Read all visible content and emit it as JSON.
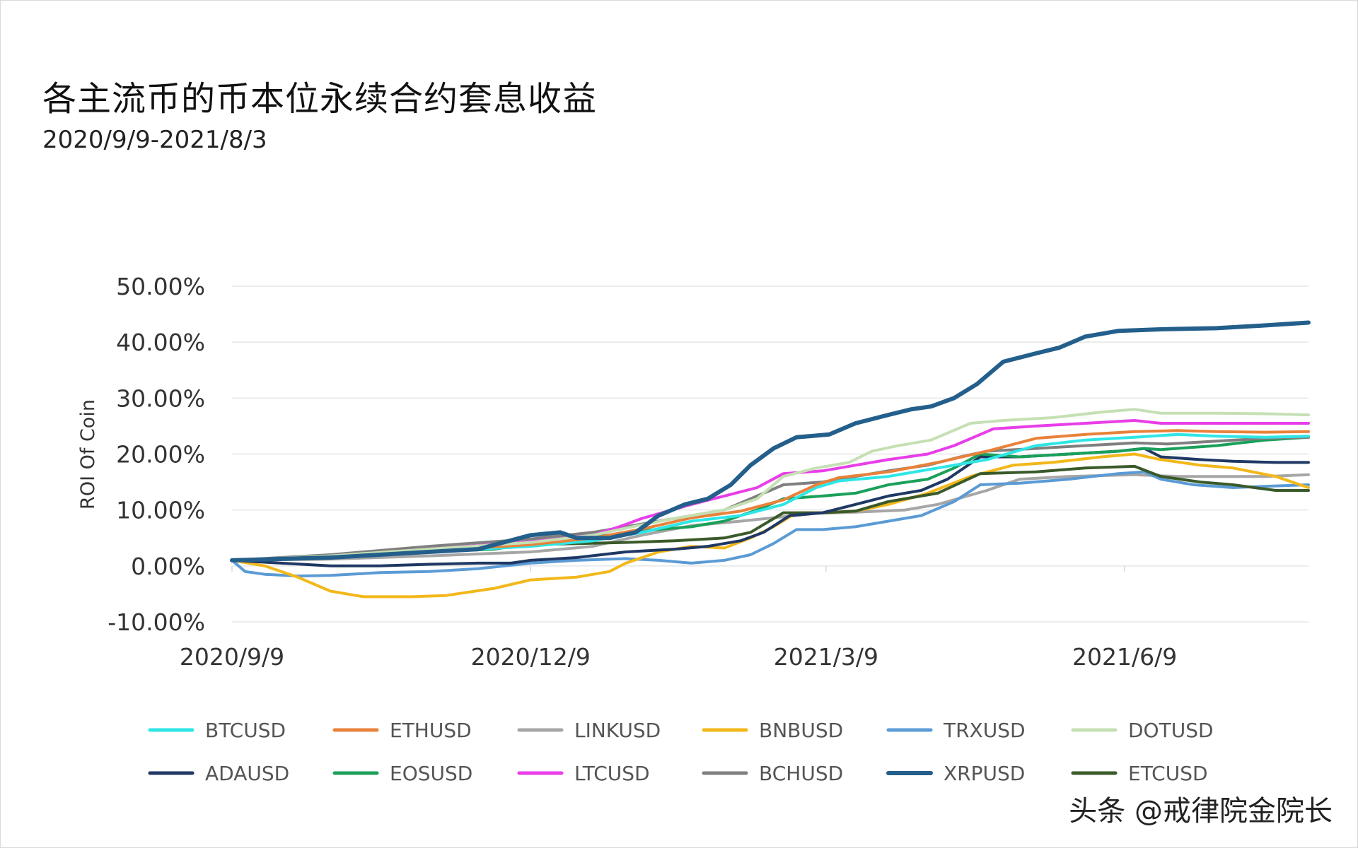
{
  "title": "各主流币的币本位永续合约套息收益",
  "subtitle": "2020/9/9-2021/8/3",
  "watermark": "头条 @戒律院金院长",
  "chart_data": {
    "type": "line",
    "ylabel": "ROI Of Coin",
    "ylim": [
      -10,
      50
    ],
    "yticks": [
      50,
      40,
      30,
      20,
      10,
      0,
      -10
    ],
    "ytick_labels": [
      "50.00%",
      "40.00%",
      "30.00%",
      "20.00%",
      "10.00%",
      "0.00%",
      "-10.00%"
    ],
    "xlim": [
      0,
      328
    ],
    "xticks": [
      0,
      91,
      181,
      272
    ],
    "xtick_labels": [
      "2020/9/9",
      "2020/12/9",
      "2021/3/9",
      "2021/6/9"
    ],
    "grid": true,
    "legend_position": "bottom",
    "series": [
      {
        "name": "BTCUSD",
        "color": "#2ee6e6",
        "points": [
          [
            0,
            1
          ],
          [
            30,
            1.5
          ],
          [
            60,
            2.5
          ],
          [
            91,
            3.5
          ],
          [
            110,
            4.5
          ],
          [
            125,
            6
          ],
          [
            140,
            8
          ],
          [
            155,
            9
          ],
          [
            168,
            11
          ],
          [
            178,
            14
          ],
          [
            185,
            15.2
          ],
          [
            200,
            16
          ],
          [
            215,
            17.5
          ],
          [
            230,
            19
          ],
          [
            245,
            21.5
          ],
          [
            260,
            22.5
          ],
          [
            275,
            23
          ],
          [
            288,
            23.5
          ],
          [
            300,
            23.2
          ],
          [
            315,
            23
          ],
          [
            328,
            23.2
          ]
        ]
      },
      {
        "name": "ETHUSD",
        "color": "#e8823a",
        "points": [
          [
            0,
            1
          ],
          [
            30,
            1.6
          ],
          [
            60,
            2.7
          ],
          [
            91,
            3.8
          ],
          [
            110,
            5
          ],
          [
            125,
            6.6
          ],
          [
            140,
            8.6
          ],
          [
            155,
            9.8
          ],
          [
            168,
            11.8
          ],
          [
            178,
            14.5
          ],
          [
            185,
            15.8
          ],
          [
            200,
            16.8
          ],
          [
            215,
            18.5
          ],
          [
            230,
            20.5
          ],
          [
            245,
            22.8
          ],
          [
            260,
            23.5
          ],
          [
            275,
            24
          ],
          [
            288,
            24.2
          ],
          [
            300,
            24
          ],
          [
            315,
            23.9
          ],
          [
            328,
            24
          ]
        ]
      },
      {
        "name": "LINKUSD",
        "color": "#a6a6a6",
        "points": [
          [
            0,
            1
          ],
          [
            30,
            1.2
          ],
          [
            60,
            1.8
          ],
          [
            91,
            2.5
          ],
          [
            110,
            3.5
          ],
          [
            125,
            5.5
          ],
          [
            140,
            7.2
          ],
          [
            155,
            8
          ],
          [
            168,
            8.8
          ],
          [
            178,
            9.4
          ],
          [
            190,
            9.6
          ],
          [
            205,
            10
          ],
          [
            215,
            11
          ],
          [
            230,
            13.5
          ],
          [
            240,
            15.5
          ],
          [
            255,
            16
          ],
          [
            275,
            16.3
          ],
          [
            288,
            16
          ],
          [
            300,
            16
          ],
          [
            315,
            16
          ],
          [
            328,
            16.3
          ]
        ]
      },
      {
        "name": "BNBUSD",
        "color": "#f2b81a",
        "points": [
          [
            0,
            1
          ],
          [
            10,
            0
          ],
          [
            20,
            -2
          ],
          [
            30,
            -4.5
          ],
          [
            40,
            -5.5
          ],
          [
            55,
            -5.5
          ],
          [
            65,
            -5.3
          ],
          [
            80,
            -4
          ],
          [
            91,
            -2.5
          ],
          [
            105,
            -2
          ],
          [
            115,
            -1
          ],
          [
            120,
            0.5
          ],
          [
            130,
            2.5
          ],
          [
            140,
            3.5
          ],
          [
            150,
            3.2
          ],
          [
            158,
            5
          ],
          [
            165,
            7
          ],
          [
            172,
            9.5
          ],
          [
            180,
            9.5
          ],
          [
            190,
            9.8
          ],
          [
            200,
            11
          ],
          [
            212,
            13
          ],
          [
            225,
            16
          ],
          [
            238,
            18
          ],
          [
            250,
            18.5
          ],
          [
            265,
            19.5
          ],
          [
            275,
            20
          ],
          [
            283,
            19
          ],
          [
            295,
            18
          ],
          [
            305,
            17.5
          ],
          [
            318,
            16
          ],
          [
            328,
            14
          ]
        ]
      },
      {
        "name": "TRXUSD",
        "color": "#5b9bd5",
        "points": [
          [
            0,
            1
          ],
          [
            4,
            -1
          ],
          [
            10,
            -1.5
          ],
          [
            20,
            -1.8
          ],
          [
            30,
            -1.7
          ],
          [
            45,
            -1.2
          ],
          [
            60,
            -1
          ],
          [
            75,
            -0.5
          ],
          [
            91,
            0.5
          ],
          [
            105,
            1
          ],
          [
            120,
            1.3
          ],
          [
            130,
            1
          ],
          [
            140,
            0.5
          ],
          [
            150,
            1
          ],
          [
            158,
            2
          ],
          [
            165,
            4
          ],
          [
            172,
            6.5
          ],
          [
            180,
            6.5
          ],
          [
            190,
            7
          ],
          [
            200,
            8
          ],
          [
            210,
            9
          ],
          [
            220,
            11.5
          ],
          [
            228,
            14.5
          ],
          [
            240,
            14.8
          ],
          [
            255,
            15.5
          ],
          [
            270,
            16.5
          ],
          [
            278,
            16.8
          ],
          [
            283,
            15.5
          ],
          [
            293,
            14.5
          ],
          [
            305,
            14
          ],
          [
            318,
            14.3
          ],
          [
            328,
            14.5
          ]
        ]
      },
      {
        "name": "DOTUSD",
        "color": "#c5e0b4",
        "points": [
          [
            0,
            1
          ],
          [
            30,
            1.8
          ],
          [
            60,
            3
          ],
          [
            91,
            4.2
          ],
          [
            110,
            5.5
          ],
          [
            122,
            7
          ],
          [
            135,
            8.5
          ],
          [
            150,
            10
          ],
          [
            160,
            12
          ],
          [
            168,
            16
          ],
          [
            178,
            17.5
          ],
          [
            188,
            18.5
          ],
          [
            195,
            20.5
          ],
          [
            203,
            21.5
          ],
          [
            213,
            22.5
          ],
          [
            225,
            25.5
          ],
          [
            235,
            26
          ],
          [
            250,
            26.5
          ],
          [
            265,
            27.5
          ],
          [
            275,
            28
          ],
          [
            283,
            27.3
          ],
          [
            300,
            27.3
          ],
          [
            315,
            27.2
          ],
          [
            328,
            27
          ]
        ]
      },
      {
        "name": "ADAUSD",
        "color": "#1f3864",
        "points": [
          [
            0,
            1
          ],
          [
            15,
            0.5
          ],
          [
            30,
            0
          ],
          [
            45,
            0
          ],
          [
            60,
            0.3
          ],
          [
            75,
            0.5
          ],
          [
            85,
            0.5
          ],
          [
            91,
            1
          ],
          [
            105,
            1.5
          ],
          [
            120,
            2.5
          ],
          [
            135,
            3
          ],
          [
            145,
            3.5
          ],
          [
            155,
            4.5
          ],
          [
            162,
            6
          ],
          [
            170,
            9
          ],
          [
            180,
            9.5
          ],
          [
            190,
            11
          ],
          [
            200,
            12.5
          ],
          [
            210,
            13.5
          ],
          [
            218,
            15.5
          ],
          [
            228,
            19.5
          ],
          [
            240,
            19.5
          ],
          [
            255,
            20
          ],
          [
            270,
            20.5
          ],
          [
            278,
            21
          ],
          [
            283,
            19.5
          ],
          [
            295,
            19
          ],
          [
            305,
            18.7
          ],
          [
            318,
            18.5
          ],
          [
            328,
            18.5
          ]
        ]
      },
      {
        "name": "EOSUSD",
        "color": "#1aa05a",
        "points": [
          [
            0,
            1
          ],
          [
            30,
            1.5
          ],
          [
            60,
            2.5
          ],
          [
            80,
            3
          ],
          [
            91,
            4
          ],
          [
            105,
            5
          ],
          [
            115,
            5.5
          ],
          [
            125,
            6.3
          ],
          [
            140,
            7
          ],
          [
            150,
            8
          ],
          [
            160,
            10
          ],
          [
            168,
            12
          ],
          [
            180,
            12.5
          ],
          [
            190,
            13
          ],
          [
            200,
            14.5
          ],
          [
            212,
            15.5
          ],
          [
            220,
            17.5
          ],
          [
            228,
            20
          ],
          [
            240,
            19.5
          ],
          [
            255,
            20
          ],
          [
            270,
            20.5
          ],
          [
            278,
            21
          ],
          [
            283,
            20.8
          ],
          [
            300,
            21.5
          ],
          [
            315,
            22.5
          ],
          [
            328,
            23
          ]
        ]
      },
      {
        "name": "LTCUSD",
        "color": "#e83ee8",
        "points": [
          [
            0,
            1
          ],
          [
            30,
            1.7
          ],
          [
            60,
            3
          ],
          [
            91,
            4.3
          ],
          [
            110,
            5.5
          ],
          [
            118,
            7
          ],
          [
            125,
            8.5
          ],
          [
            140,
            11
          ],
          [
            150,
            12.5
          ],
          [
            160,
            14
          ],
          [
            168,
            16.5
          ],
          [
            180,
            17
          ],
          [
            190,
            18
          ],
          [
            200,
            19
          ],
          [
            212,
            20
          ],
          [
            220,
            21.5
          ],
          [
            232,
            24.5
          ],
          [
            245,
            25
          ],
          [
            260,
            25.5
          ],
          [
            275,
            26
          ],
          [
            283,
            25.5
          ],
          [
            300,
            25.5
          ],
          [
            315,
            25.5
          ],
          [
            328,
            25.5
          ]
        ]
      },
      {
        "name": "BCHUSD",
        "color": "#7f7f7f",
        "points": [
          [
            0,
            1
          ],
          [
            30,
            2
          ],
          [
            60,
            3.5
          ],
          [
            91,
            4.8
          ],
          [
            110,
            6
          ],
          [
            125,
            7.5
          ],
          [
            140,
            9
          ],
          [
            150,
            10
          ],
          [
            160,
            12.5
          ],
          [
            168,
            14.5
          ],
          [
            180,
            15
          ],
          [
            190,
            16
          ],
          [
            200,
            17
          ],
          [
            212,
            18
          ],
          [
            222,
            19.5
          ],
          [
            230,
            20.5
          ],
          [
            245,
            21
          ],
          [
            260,
            21.5
          ],
          [
            275,
            22
          ],
          [
            285,
            21.8
          ],
          [
            300,
            22.3
          ],
          [
            315,
            22.8
          ],
          [
            328,
            23
          ]
        ]
      },
      {
        "name": "XRPUSD",
        "color": "#245f8c",
        "points": [
          [
            0,
            1
          ],
          [
            30,
            1.5
          ],
          [
            60,
            2.5
          ],
          [
            75,
            3
          ],
          [
            91,
            5.5
          ],
          [
            100,
            6
          ],
          [
            105,
            5
          ],
          [
            115,
            5
          ],
          [
            123,
            6
          ],
          [
            130,
            9
          ],
          [
            138,
            11
          ],
          [
            145,
            12
          ],
          [
            152,
            14.5
          ],
          [
            158,
            18
          ],
          [
            165,
            21
          ],
          [
            172,
            23
          ],
          [
            182,
            23.5
          ],
          [
            190,
            25.5
          ],
          [
            200,
            27
          ],
          [
            207,
            28
          ],
          [
            213,
            28.5
          ],
          [
            220,
            30
          ],
          [
            227,
            32.5
          ],
          [
            235,
            36.5
          ],
          [
            245,
            38
          ],
          [
            252,
            39
          ],
          [
            260,
            41
          ],
          [
            270,
            42
          ],
          [
            283,
            42.3
          ],
          [
            300,
            42.5
          ],
          [
            315,
            43
          ],
          [
            328,
            43.5
          ]
        ]
      },
      {
        "name": "ETCUSD",
        "color": "#3a5a2a",
        "points": [
          [
            0,
            1
          ],
          [
            30,
            1.5
          ],
          [
            60,
            2.5
          ],
          [
            75,
            3
          ],
          [
            91,
            3.8
          ],
          [
            105,
            4
          ],
          [
            120,
            4.2
          ],
          [
            135,
            4.5
          ],
          [
            150,
            5
          ],
          [
            158,
            6
          ],
          [
            168,
            9.5
          ],
          [
            180,
            9.5
          ],
          [
            190,
            9.8
          ],
          [
            200,
            11.5
          ],
          [
            215,
            13
          ],
          [
            228,
            16.5
          ],
          [
            245,
            16.8
          ],
          [
            260,
            17.5
          ],
          [
            275,
            17.8
          ],
          [
            283,
            16
          ],
          [
            295,
            15
          ],
          [
            305,
            14.5
          ],
          [
            318,
            13.5
          ],
          [
            328,
            13.5
          ]
        ]
      }
    ]
  }
}
